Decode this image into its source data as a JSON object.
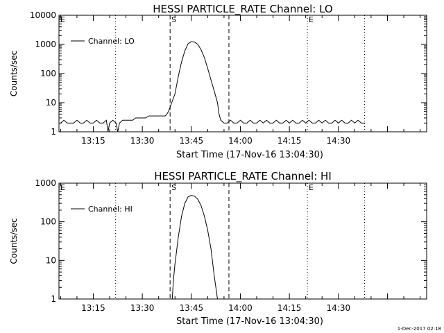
{
  "chart_data": [
    {
      "type": "line",
      "title": "HESSI PARTICLE_RATE Channel: LO",
      "xlabel": "Start Time (17-Nov-16 13:04:30)",
      "ylabel": "Counts/sec",
      "yscale": "log",
      "ylim": [
        1,
        10000
      ],
      "xlim": [
        "13:04:30",
        "14:57:00"
      ],
      "x_ticks": [
        "13:15",
        "13:30",
        "13:45",
        "14:00",
        "14:15",
        "14:30"
      ],
      "y_ticks": [
        "1",
        "10",
        "100",
        "1000",
        "10000"
      ],
      "legend": "Channel: LO",
      "legend_position": "top-left",
      "markers": [
        {
          "label": "E",
          "time": "13:04:30",
          "style": "dotted"
        },
        {
          "label": "",
          "time": "13:21:50",
          "style": "dotted"
        },
        {
          "label": "S",
          "time": "13:38:30",
          "style": "dashed"
        },
        {
          "label": "",
          "time": "13:56:30",
          "style": "dashed"
        },
        {
          "label": "E",
          "time": "14:20:30",
          "style": "dotted"
        },
        {
          "label": "",
          "time": "14:38:00",
          "style": "dotted"
        }
      ],
      "series": [
        {
          "name": "Channel: LO",
          "x": [
            "13:05:00",
            "13:06:00",
            "13:07:00",
            "13:08:00",
            "13:09:00",
            "13:10:00",
            "13:11:00",
            "13:12:00",
            "13:13:00",
            "13:14:00",
            "13:15:00",
            "13:16:00",
            "13:17:00",
            "13:18:00",
            "13:19:00",
            "13:19:30",
            "13:20:00",
            "13:21:00",
            "13:22:00",
            "13:22:30",
            "13:23:00",
            "13:24:00",
            "13:25:00",
            "13:26:00",
            "13:27:00",
            "13:28:00",
            "13:29:00",
            "13:30:00",
            "13:31:00",
            "13:32:00",
            "13:33:00",
            "13:34:00",
            "13:35:00",
            "13:36:00",
            "13:37:00",
            "13:37:30",
            "13:38:00",
            "13:38:30",
            "13:39:00",
            "13:40:00",
            "13:41:00",
            "13:42:00",
            "13:43:00",
            "13:44:00",
            "13:45:00",
            "13:46:00",
            "13:47:00",
            "13:48:00",
            "13:49:00",
            "13:50:00",
            "13:51:00",
            "13:52:00",
            "13:53:00",
            "13:53:30",
            "13:54:00",
            "13:55:00",
            "13:56:00",
            "13:57:00",
            "13:58:00",
            "13:59:00",
            "14:00:00",
            "14:01:00",
            "14:02:00",
            "14:03:00",
            "14:04:00",
            "14:05:00",
            "14:06:00",
            "14:07:00",
            "14:08:00",
            "14:09:00",
            "14:10:00",
            "14:11:00",
            "14:12:00",
            "14:13:00",
            "14:14:00",
            "14:15:00",
            "14:16:00",
            "14:17:00",
            "14:18:00",
            "14:19:00",
            "14:20:00",
            "14:21:00",
            "14:22:00",
            "14:23:00",
            "14:24:00",
            "14:25:00",
            "14:26:00",
            "14:27:00",
            "14:28:00",
            "14:29:00",
            "14:30:00",
            "14:31:00",
            "14:32:00",
            "14:33:00",
            "14:34:00",
            "14:35:00",
            "14:36:00",
            "14:37:00",
            "14:38:00"
          ],
          "values": [
            2,
            2.5,
            2,
            2,
            2,
            2.5,
            2,
            2,
            2.5,
            2,
            2,
            2.5,
            2,
            2,
            2.5,
            1,
            2,
            2.5,
            2,
            1,
            2,
            2.5,
            2.5,
            2.5,
            2.5,
            3,
            3,
            3,
            3,
            3.5,
            3.5,
            3.5,
            3.5,
            3.5,
            3.5,
            4,
            5,
            7,
            10,
            20,
            80,
            250,
            600,
            1050,
            1250,
            1200,
            1000,
            650,
            350,
            150,
            60,
            25,
            10,
            4,
            2.5,
            2,
            2,
            2.5,
            2,
            2,
            2.5,
            2,
            2,
            2.5,
            2,
            2,
            2.5,
            2,
            2.5,
            2,
            2,
            2.5,
            2,
            2,
            2.5,
            2,
            2.5,
            2,
            2,
            2.5,
            2,
            2.5,
            2,
            2,
            2.5,
            2,
            2.5,
            2,
            2,
            2.5,
            2,
            2.5,
            2,
            2,
            2.5,
            2,
            2.5,
            2,
            2
          ]
        }
      ]
    },
    {
      "type": "line",
      "title": "HESSI PARTICLE_RATE Channel: HI",
      "xlabel": "Start Time (17-Nov-16 13:04:30)",
      "ylabel": "Counts/sec",
      "yscale": "log",
      "ylim": [
        1,
        1000
      ],
      "xlim": [
        "13:04:30",
        "14:57:00"
      ],
      "x_ticks": [
        "13:15",
        "13:30",
        "13:45",
        "14:00",
        "14:15",
        "14:30"
      ],
      "y_ticks": [
        "1",
        "10",
        "100",
        "1000"
      ],
      "legend": "Channel: HI",
      "legend_position": "top-left",
      "markers": [
        {
          "label": "E",
          "time": "13:04:30",
          "style": "dotted"
        },
        {
          "label": "",
          "time": "13:21:50",
          "style": "dotted"
        },
        {
          "label": "S",
          "time": "13:38:30",
          "style": "dashed"
        },
        {
          "label": "",
          "time": "13:56:30",
          "style": "dashed"
        },
        {
          "label": "E",
          "time": "14:20:30",
          "style": "dotted"
        },
        {
          "label": "",
          "time": "14:38:00",
          "style": "dotted"
        }
      ],
      "series": [
        {
          "name": "Channel: HI",
          "x": [
            "13:39:10",
            "13:39:30",
            "13:40:00",
            "13:41:00",
            "13:42:00",
            "13:43:00",
            "13:44:00",
            "13:45:00",
            "13:46:00",
            "13:47:00",
            "13:48:00",
            "13:49:00",
            "13:50:00",
            "13:51:00",
            "13:52:00",
            "13:53:00"
          ],
          "values": [
            1,
            3,
            8,
            40,
            140,
            300,
            440,
            480,
            460,
            380,
            260,
            140,
            60,
            20,
            4,
            1
          ]
        }
      ]
    }
  ],
  "footer_timestamp": "1-Dec-2017 02:18"
}
